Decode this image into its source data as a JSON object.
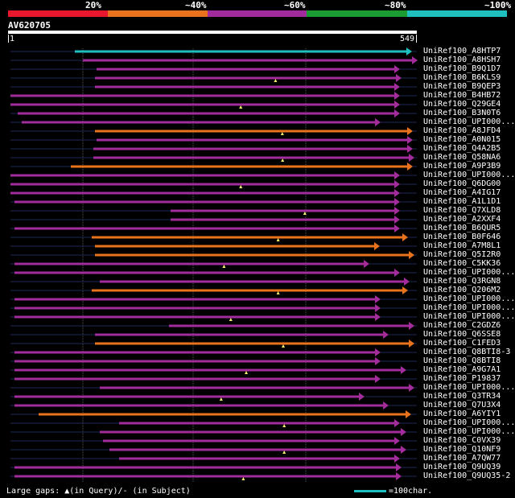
{
  "legend": [
    {
      "label": "20%",
      "color": "#e8172e"
    },
    {
      "label": "~40%",
      "color": "#e8731c"
    },
    {
      "label": "~60%",
      "color": "#a22c9c"
    },
    {
      "label": "~80%",
      "color": "#1a9c32"
    },
    {
      "label": "~100%",
      "color": "#1fbfc0"
    }
  ],
  "query": {
    "id": "AV620705",
    "start": "1",
    "end": "549"
  },
  "hits": [
    {
      "name": "UniRef100_A8HTP7",
      "color": "#1fbfc0"
    },
    {
      "name": "UniRef100_A8HSH7",
      "color": "#a22c9c"
    },
    {
      "name": "UniRef100_B9Q1D7",
      "color": "#a22c9c"
    },
    {
      "name": "UniRef100_B6KLS9",
      "color": "#a22c9c"
    },
    {
      "name": "UniRef100_B9QEP3",
      "color": "#a22c9c"
    },
    {
      "name": "UniRef100_B4HB72",
      "color": "#a22c9c"
    },
    {
      "name": "UniRef100_Q29GE4",
      "color": "#a22c9c"
    },
    {
      "name": "UniRef100_B3N0T6",
      "color": "#a22c9c"
    },
    {
      "name": "UniRef100_UPI000...",
      "color": "#a22c9c"
    },
    {
      "name": "UniRef100_A8JFD4",
      "color": "#e8731c"
    },
    {
      "name": "UniRef100_A0N015",
      "color": "#a22c9c"
    },
    {
      "name": "UniRef100_Q4A2B5",
      "color": "#a22c9c"
    },
    {
      "name": "UniRef100_Q58NA6",
      "color": "#a22c9c"
    },
    {
      "name": "UniRef100_A9P3B9",
      "color": "#e8731c"
    },
    {
      "name": "UniRef100_UPI000...",
      "color": "#a22c9c"
    },
    {
      "name": "UniRef100_Q6DG00",
      "color": "#a22c9c"
    },
    {
      "name": "UniRef100_A4IG17",
      "color": "#a22c9c"
    },
    {
      "name": "UniRef100_A1L1D1",
      "color": "#a22c9c"
    },
    {
      "name": "UniRef100_Q7XLD8",
      "color": "#a22c9c"
    },
    {
      "name": "UniRef100_A2XXF4",
      "color": "#a22c9c"
    },
    {
      "name": "UniRef100_B6QUR5",
      "color": "#a22c9c"
    },
    {
      "name": "UniRef100_B0F646",
      "color": "#e8731c"
    },
    {
      "name": "UniRef100_A7M8L1",
      "color": "#e8731c"
    },
    {
      "name": "UniRef100_Q5I2R0",
      "color": "#e8731c"
    },
    {
      "name": "UniRef100_C5KK36",
      "color": "#a22c9c"
    },
    {
      "name": "UniRef100_UPI000...",
      "color": "#a22c9c"
    },
    {
      "name": "UniRef100_Q3RGN8",
      "color": "#a22c9c"
    },
    {
      "name": "UniRef100_Q206M2",
      "color": "#e8731c"
    },
    {
      "name": "UniRef100_UPI000...",
      "color": "#a22c9c"
    },
    {
      "name": "UniRef100_UPI000...",
      "color": "#a22c9c"
    },
    {
      "name": "UniRef100_UPI000...",
      "color": "#a22c9c"
    },
    {
      "name": "UniRef100_C2GDZ6",
      "color": "#a22c9c"
    },
    {
      "name": "UniRef100_Q6SSE8",
      "color": "#a22c9c"
    },
    {
      "name": "UniRef100_C1FED3",
      "color": "#e8731c"
    },
    {
      "name": "UniRef100_Q8BTI8-3",
      "color": "#a22c9c"
    },
    {
      "name": "UniRef100_Q8BTI8",
      "color": "#a22c9c"
    },
    {
      "name": "UniRef100_A9G7A1",
      "color": "#a22c9c"
    },
    {
      "name": "UniRef100_P19837",
      "color": "#a22c9c"
    },
    {
      "name": "UniRef100_UPI000...",
      "color": "#a22c9c"
    },
    {
      "name": "UniRef100_Q3TR34",
      "color": "#a22c9c"
    },
    {
      "name": "UniRef100_Q7U3X4",
      "color": "#a22c9c"
    },
    {
      "name": "UniRef100_A6YIY1",
      "color": "#e8731c"
    },
    {
      "name": "UniRef100_UPI000...",
      "color": "#a22c9c"
    },
    {
      "name": "UniRef100_UPI000...",
      "color": "#a22c9c"
    },
    {
      "name": "UniRef100_C0VX39",
      "color": "#a22c9c"
    },
    {
      "name": "UniRef100_Q10NF9",
      "color": "#a22c9c"
    },
    {
      "name": "UniRef100_A7QW77",
      "color": "#a22c9c"
    },
    {
      "name": "UniRef100_Q9UQ39",
      "color": "#a22c9c"
    },
    {
      "name": "UniRef100_Q9UQ35-2",
      "color": "#a22c9c"
    }
  ],
  "footer": {
    "gaps_text": "Large gaps: ▲(in Query)/- (in Subject)",
    "scale_text": "=100char."
  }
}
